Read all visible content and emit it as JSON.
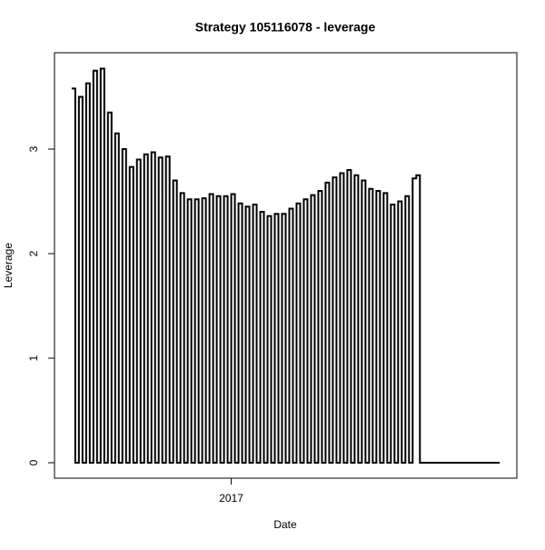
{
  "chart_data": {
    "type": "line",
    "title": "Strategy 105116078 - leverage",
    "x_label": "Date",
    "y_label": "Leverage",
    "step": true,
    "grid": false,
    "categories": [
      null,
      null,
      null,
      null,
      null,
      null,
      null,
      null,
      null,
      null,
      null,
      null,
      null,
      null,
      null,
      null,
      null,
      null,
      null,
      null,
      null,
      null,
      null,
      null,
      null,
      null,
      null,
      null,
      null,
      null,
      null,
      null,
      null,
      null,
      null,
      null,
      null,
      null,
      null,
      null,
      null,
      null,
      null,
      null,
      "2017",
      null,
      null,
      null,
      null,
      null,
      null,
      null,
      null,
      null,
      null,
      null,
      null,
      null,
      null,
      null,
      null,
      null,
      null,
      null,
      null,
      null,
      null,
      null,
      null,
      null,
      null,
      null,
      null,
      null,
      null,
      null,
      null,
      null,
      null,
      null,
      null,
      null,
      null,
      null,
      null,
      null,
      null,
      null,
      null,
      null,
      null,
      null,
      null,
      null,
      null,
      null,
      null,
      null,
      null,
      null,
      null,
      null,
      null,
      null,
      null,
      null,
      null,
      null,
      null,
      null,
      null,
      null,
      null,
      null,
      null,
      null,
      null,
      null,
      null
    ],
    "series": [
      {
        "name": "leverage",
        "color": "#000000",
        "values": [
          3.58,
          0,
          3.5,
          0,
          3.63,
          0,
          3.75,
          0,
          3.77,
          0,
          3.35,
          0,
          3.15,
          0,
          3.0,
          0,
          2.83,
          0,
          2.9,
          0,
          2.95,
          0,
          2.97,
          0,
          2.92,
          0,
          2.93,
          0,
          2.7,
          0,
          2.58,
          0,
          2.52,
          0,
          2.52,
          0,
          2.53,
          0,
          2.57,
          0,
          2.55,
          0,
          2.55,
          0,
          2.57,
          0,
          2.48,
          0,
          2.45,
          0,
          2.47,
          0,
          2.4,
          0,
          2.36,
          0,
          2.38,
          0,
          2.38,
          0,
          2.43,
          0,
          2.48,
          0,
          2.52,
          0,
          2.56,
          0,
          2.6,
          0,
          2.68,
          0,
          2.73,
          0,
          2.77,
          0,
          2.8,
          0,
          2.75,
          0,
          2.7,
          0,
          2.62,
          0,
          2.6,
          0,
          2.58,
          0,
          2.47,
          0,
          2.5,
          0,
          2.55,
          0,
          2.72,
          2.75,
          0,
          0,
          0,
          0,
          0,
          0,
          0,
          0,
          0,
          0,
          0,
          0,
          0,
          0,
          0,
          0,
          0,
          0,
          0,
          0,
          0,
          0,
          0
        ]
      }
    ],
    "ylim": [
      -0.148,
      3.922
    ],
    "yticks": [
      0,
      1,
      2,
      3
    ]
  }
}
